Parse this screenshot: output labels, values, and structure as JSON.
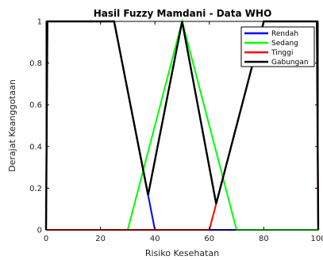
{
  "chart_data": {
    "type": "line",
    "title": "Hasil Fuzzy Mamdani - Data WHO",
    "xlabel": "Risiko Kesehatan",
    "ylabel": "Derajat Keanggotaan",
    "xlim": [
      0,
      100
    ],
    "ylim": [
      0,
      1
    ],
    "x_ticks": [
      "0",
      "20",
      "40",
      "60",
      "80",
      "100"
    ],
    "y_ticks": [
      "0",
      "0.2",
      "0.4",
      "0.6",
      "0.8",
      "1"
    ],
    "grid": false,
    "legend_position": "top-right",
    "series": [
      {
        "name": "Rendah",
        "color": "#0000ff",
        "x": [
          0,
          0.5,
          25,
          40,
          100
        ],
        "y": [
          0,
          1,
          1,
          0,
          0
        ]
      },
      {
        "name": "Sedang",
        "color": "#00ff00",
        "x": [
          0,
          30,
          50,
          70,
          100
        ],
        "y": [
          0,
          0,
          1,
          0,
          0
        ]
      },
      {
        "name": "Tinggi",
        "color": "#ff0000",
        "x": [
          0,
          60,
          80,
          99.5,
          100
        ],
        "y": [
          0,
          0,
          1,
          1,
          0
        ]
      },
      {
        "name": "Gabungan",
        "color": "#000000",
        "x": [
          0,
          0.5,
          25,
          37.5,
          50,
          62.5,
          80,
          99.5,
          100
        ],
        "y": [
          0,
          1,
          1,
          0.167,
          1,
          0.125,
          1,
          1,
          0
        ]
      }
    ]
  }
}
